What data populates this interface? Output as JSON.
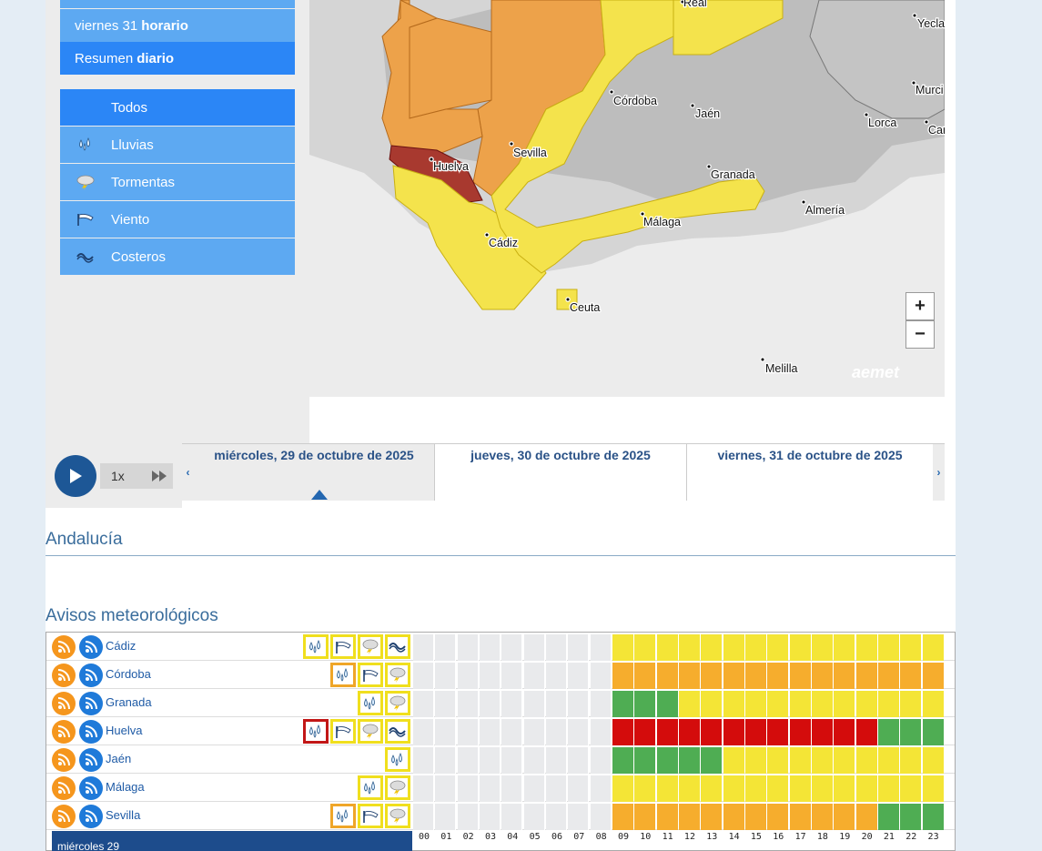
{
  "nav": {
    "horario": {
      "pre": "viernes 31",
      "bold": "horario"
    },
    "resumen": {
      "pre": "Resumen",
      "bold": "diario"
    }
  },
  "filters": [
    {
      "label": "Todos",
      "icon": "none"
    },
    {
      "label": "Lluvias",
      "icon": "rain-icon"
    },
    {
      "label": "Tormentas",
      "icon": "storm-icon"
    },
    {
      "label": "Viento",
      "icon": "wind-icon"
    },
    {
      "label": "Costeros",
      "icon": "coastal-icon"
    }
  ],
  "map": {
    "cities": [
      "Real",
      "Yecla",
      "Murci",
      "Lorca",
      "Car",
      "Córdoba",
      "Jaén",
      "Huelva",
      "Sevilla",
      "Granada",
      "Almería",
      "Málaga",
      "Cádiz",
      "Ceuta",
      "Melilla"
    ],
    "zoom_in": "+",
    "zoom_out": "−",
    "brand": "aemet"
  },
  "player": {
    "speed": "1x"
  },
  "dates": [
    "miércoles, 29 de octubre de 2025",
    "jueves, 30 de octubre de 2025",
    "viernes, 31 de octubre de 2025"
  ],
  "region_title": "Andalucía",
  "warnings_title": "Avisos meteorológicos",
  "colors": {
    "yellow": "#f4e536",
    "orange": "#f6ad2d",
    "red": "#d40c0c",
    "green": "#4fad53",
    "gray": "#e9eaec"
  },
  "provinces": [
    {
      "name": "Cádiz",
      "icons": [
        {
          "type": "rain-icon",
          "level": "yellow"
        },
        {
          "type": "wind-icon",
          "level": "yellow"
        },
        {
          "type": "storm-icon",
          "level": "yellow"
        },
        {
          "type": "coastal-icon",
          "level": "yellow"
        }
      ],
      "hours": "ggggggggg yyyyyyyyyyyyyyy"
    },
    {
      "name": "Córdoba",
      "icons": [
        {
          "type": "rain-icon",
          "level": "orange"
        },
        {
          "type": "wind-icon",
          "level": "yellow"
        },
        {
          "type": "storm-icon",
          "level": "yellow"
        }
      ],
      "hours": "ggggggggg ooooooooooooooo"
    },
    {
      "name": "Granada",
      "icons": [
        {
          "type": "rain-icon",
          "level": "yellow"
        },
        {
          "type": "storm-icon",
          "level": "yellow"
        }
      ],
      "hours": "ggggggggg GGGyyyyyyyyyyyy"
    },
    {
      "name": "Huelva",
      "icons": [
        {
          "type": "rain-icon",
          "level": "red"
        },
        {
          "type": "wind-icon",
          "level": "yellow"
        },
        {
          "type": "storm-icon",
          "level": "yellow"
        },
        {
          "type": "coastal-icon",
          "level": "yellow"
        }
      ],
      "hours": "ggggggggg rrrrrrrrrrrrGGG"
    },
    {
      "name": "Jaén",
      "icons": [
        {
          "type": "rain-icon",
          "level": "yellow"
        }
      ],
      "hours": "ggggggggg GGGGGyyyyyyyyyy"
    },
    {
      "name": "Málaga",
      "icons": [
        {
          "type": "rain-icon",
          "level": "yellow"
        },
        {
          "type": "storm-icon",
          "level": "yellow"
        }
      ],
      "hours": "ggggggggg yyyyyyyyyyyyyyy"
    },
    {
      "name": "Sevilla",
      "icons": [
        {
          "type": "rain-icon",
          "level": "orange"
        },
        {
          "type": "wind-icon",
          "level": "yellow"
        },
        {
          "type": "storm-icon",
          "level": "yellow"
        }
      ],
      "hours": "ggggggggg ooooooooooooGGG"
    }
  ],
  "timeline": {
    "day_label": "miércoles 29",
    "hours": [
      "00",
      "01",
      "02",
      "03",
      "04",
      "05",
      "06",
      "07",
      "08",
      "09",
      "10",
      "11",
      "12",
      "13",
      "14",
      "15",
      "16",
      "17",
      "18",
      "19",
      "20",
      "21",
      "22",
      "23"
    ]
  }
}
